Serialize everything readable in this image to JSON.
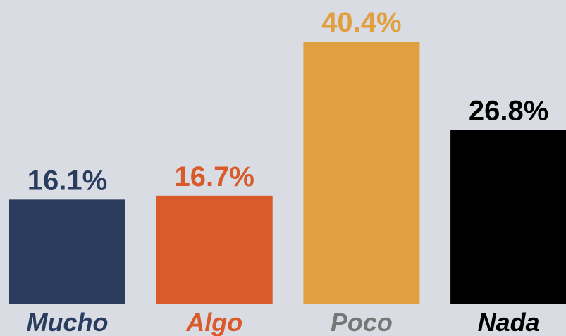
{
  "chart_data": {
    "type": "bar",
    "categories": [
      "Mucho",
      "Algo",
      "Poco",
      "Nada"
    ],
    "values": [
      16.1,
      16.7,
      40.4,
      26.8
    ],
    "value_labels": [
      "16.1%",
      "16.7%",
      "40.4%",
      "26.8%"
    ],
    "colors": [
      "#2b3d5f",
      "#d95b2b",
      "#e0a040",
      "#000000"
    ],
    "category_label_colors": [
      "#2b3d5f",
      "#d95b2b",
      "#777777",
      "#000000"
    ],
    "value_label_colors": [
      "#2b3d5f",
      "#d95b2b",
      "#e0a040",
      "#000000"
    ]
  }
}
